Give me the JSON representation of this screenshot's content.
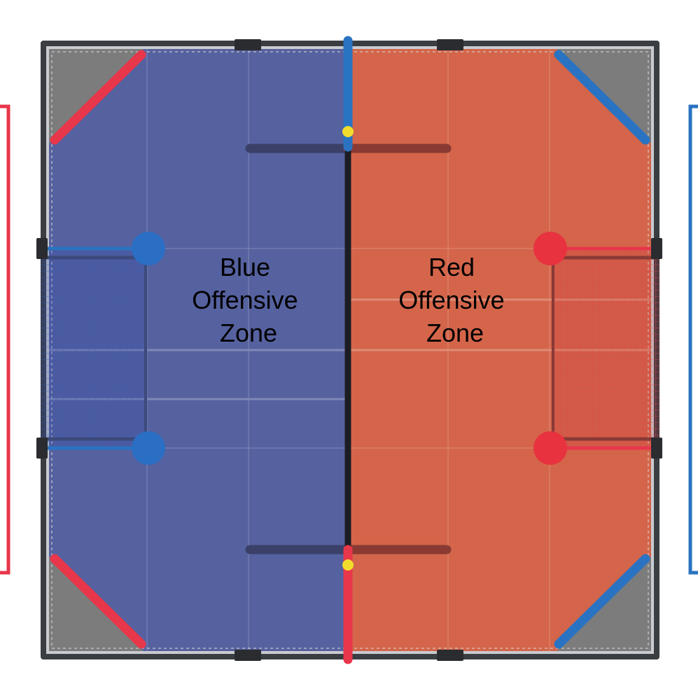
{
  "colors": {
    "blue_zone": "#56619f",
    "red_zone": "#d4654a",
    "blue_accent": "#2a73c2",
    "red_accent": "#e8364a",
    "frame": "#3a3d42",
    "corner_gray": "#7c7c7c",
    "ball": "#f2dd2e",
    "background": "#ffffff"
  },
  "zones": {
    "blue": {
      "line1": "Blue",
      "line2": "Offensive",
      "line3": "Zone"
    },
    "red": {
      "line1": "Red",
      "line2": "Offensive",
      "line3": "Zone"
    }
  },
  "icons": {
    "left_bracket": "red-starting-bracket",
    "right_bracket": "blue-starting-bracket",
    "balls": "yellow-ball-icon"
  }
}
